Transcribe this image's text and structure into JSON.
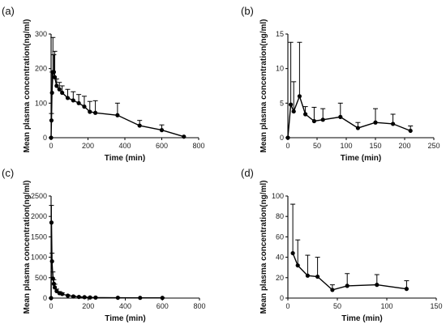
{
  "chart_data": [
    {
      "panel": "(a)",
      "type": "line",
      "xlabel": "Time (min)",
      "ylabel": "Mean plasma concentration(ng/ml)",
      "xlim": [
        0,
        800
      ],
      "ylim": [
        0,
        300
      ],
      "xticks": [
        "0",
        "200",
        "400",
        "600",
        "800"
      ],
      "yticks": [
        "0",
        "100",
        "200",
        "300"
      ],
      "series": [
        {
          "x": [
            0,
            2,
            5,
            10,
            15,
            20,
            30,
            45,
            60,
            90,
            120,
            150,
            180,
            210,
            240,
            360,
            480,
            600,
            720
          ],
          "y": [
            0,
            50,
            130,
            190,
            190,
            175,
            150,
            140,
            130,
            115,
            108,
            100,
            90,
            75,
            72,
            65,
            35,
            22,
            3
          ],
          "err": [
            0,
            20,
            60,
            100,
            50,
            75,
            20,
            20,
            20,
            25,
            25,
            25,
            30,
            30,
            35,
            35,
            15,
            15,
            0
          ]
        }
      ]
    },
    {
      "panel": "(b)",
      "type": "line",
      "xlabel": "Time (min)",
      "ylabel": "Mean plasma concentration(ng/ml)",
      "xlim": [
        0,
        250
      ],
      "ylim": [
        0,
        15
      ],
      "xticks": [
        "0",
        "50",
        "100",
        "150",
        "200",
        "250"
      ],
      "yticks": [
        "0",
        "5",
        "10",
        "15"
      ],
      "series": [
        {
          "x": [
            0,
            5,
            10,
            20,
            30,
            45,
            60,
            90,
            120,
            150,
            180,
            210
          ],
          "y": [
            0,
            4.8,
            3.8,
            6.0,
            3.4,
            2.4,
            2.6,
            3.0,
            1.4,
            2.2,
            2.0,
            1.0
          ],
          "err": [
            0,
            9.0,
            4.3,
            7.8,
            1.1,
            2.0,
            1.6,
            2.0,
            0.8,
            2.0,
            1.4,
            0.7
          ]
        }
      ]
    },
    {
      "panel": "(c)",
      "type": "line",
      "xlabel": "Time (min)",
      "ylabel": "Mean plasma concentration(ng/ml)",
      "xlim": [
        0,
        800
      ],
      "ylim": [
        0,
        2500
      ],
      "xticks": [
        "0",
        "200",
        "400",
        "600",
        "800"
      ],
      "yticks": [
        "0",
        "500",
        "1000",
        "1500",
        "2000",
        "2500"
      ],
      "series": [
        {
          "x": [
            0,
            2,
            5,
            10,
            15,
            20,
            30,
            45,
            60,
            90,
            120,
            150,
            180,
            210,
            240,
            360,
            480,
            600
          ],
          "y": [
            0,
            1850,
            900,
            480,
            350,
            260,
            170,
            120,
            100,
            60,
            40,
            28,
            22,
            15,
            12,
            8,
            6,
            5
          ],
          "err": [
            0,
            420,
            200,
            160,
            100,
            80,
            50,
            40,
            30,
            20,
            15,
            10,
            8,
            6,
            5,
            4,
            3,
            3
          ]
        }
      ]
    },
    {
      "panel": "(d)",
      "type": "line",
      "xlabel": "Time (min)",
      "ylabel": "Mean plasma concentration(ng/ml)",
      "xlim": [
        0,
        150
      ],
      "ylim": [
        0,
        100
      ],
      "xticks": [
        "0",
        "50",
        "100",
        "150"
      ],
      "yticks": [
        "0",
        "20",
        "40",
        "60",
        "80",
        "100"
      ],
      "series": [
        {
          "x": [
            5,
            10,
            20,
            30,
            45,
            60,
            90,
            120
          ],
          "y": [
            44,
            32,
            22,
            21,
            8,
            12,
            13,
            9
          ],
          "err": [
            48,
            25,
            20,
            19,
            5,
            12,
            10,
            8
          ]
        }
      ]
    }
  ]
}
